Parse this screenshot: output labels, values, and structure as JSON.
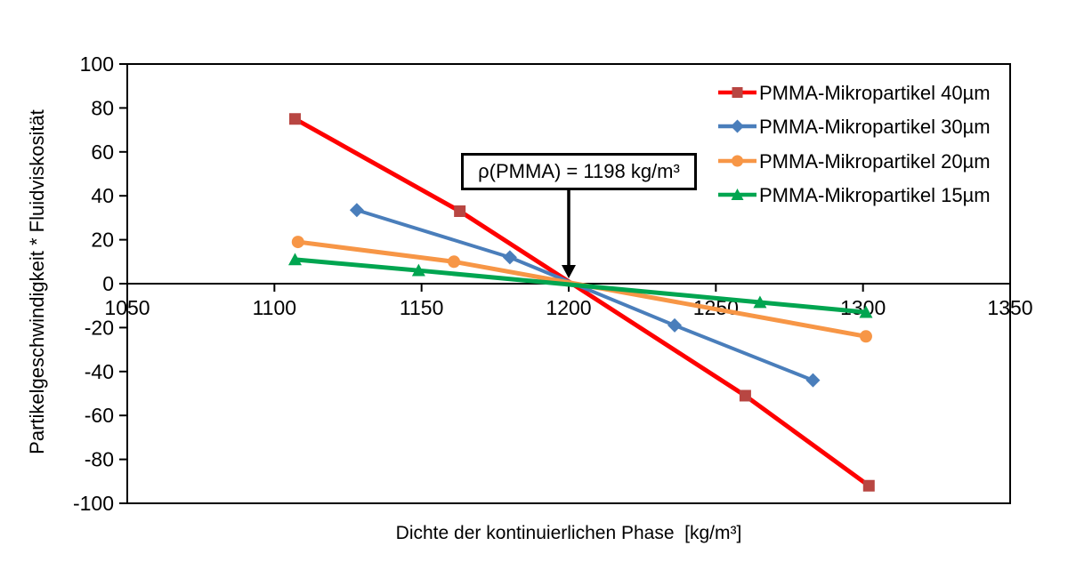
{
  "chart_data": {
    "type": "line",
    "title": "",
    "xlabel": "Dichte der kontinuierlichen Phase  [kg/m³]",
    "ylabel": "Partikelgeschwindigkeit * Fluidviskosität",
    "xlim": [
      1050,
      1350
    ],
    "ylim": [
      -100,
      100
    ],
    "x_ticks": [
      1050,
      1100,
      1150,
      1200,
      1250,
      1300,
      1350
    ],
    "y_ticks": [
      100,
      80,
      60,
      40,
      20,
      0,
      -20,
      -40,
      -60,
      -80,
      -100
    ],
    "grid": false,
    "legend_position": "top-right",
    "annotation": {
      "text": "ρ(PMMA) = 1198 kg/m³",
      "arrow_target": {
        "x": 1200,
        "y": 0
      }
    },
    "series": [
      {
        "name": "PMMA-Mikropartikel 40µm",
        "color": "#FE0000",
        "marker_color": "#B84642",
        "marker": "square",
        "points": [
          [
            1107,
            75
          ],
          [
            1163,
            33
          ],
          [
            1260,
            -51
          ],
          [
            1302,
            -92
          ]
        ]
      },
      {
        "name": "PMMA-Mikropartikel 30µm",
        "color": "#4A7EBB",
        "marker_color": "#4A7EBB",
        "marker": "diamond",
        "points": [
          [
            1128,
            33.5
          ],
          [
            1180,
            12
          ],
          [
            1236,
            -19
          ],
          [
            1283,
            -44
          ]
        ]
      },
      {
        "name": "PMMA-Mikropartikel 20µm",
        "color": "#F79646",
        "marker_color": "#F79646",
        "marker": "circle",
        "points": [
          [
            1108,
            19
          ],
          [
            1161,
            10
          ],
          [
            1301,
            -24
          ]
        ]
      },
      {
        "name": "PMMA-Mikropartikel 15µm",
        "color": "#00A550",
        "marker_color": "#00A550",
        "marker": "triangle",
        "points": [
          [
            1107,
            11
          ],
          [
            1149,
            6
          ],
          [
            1265,
            -8.5
          ],
          [
            1301,
            -13
          ]
        ]
      }
    ]
  }
}
